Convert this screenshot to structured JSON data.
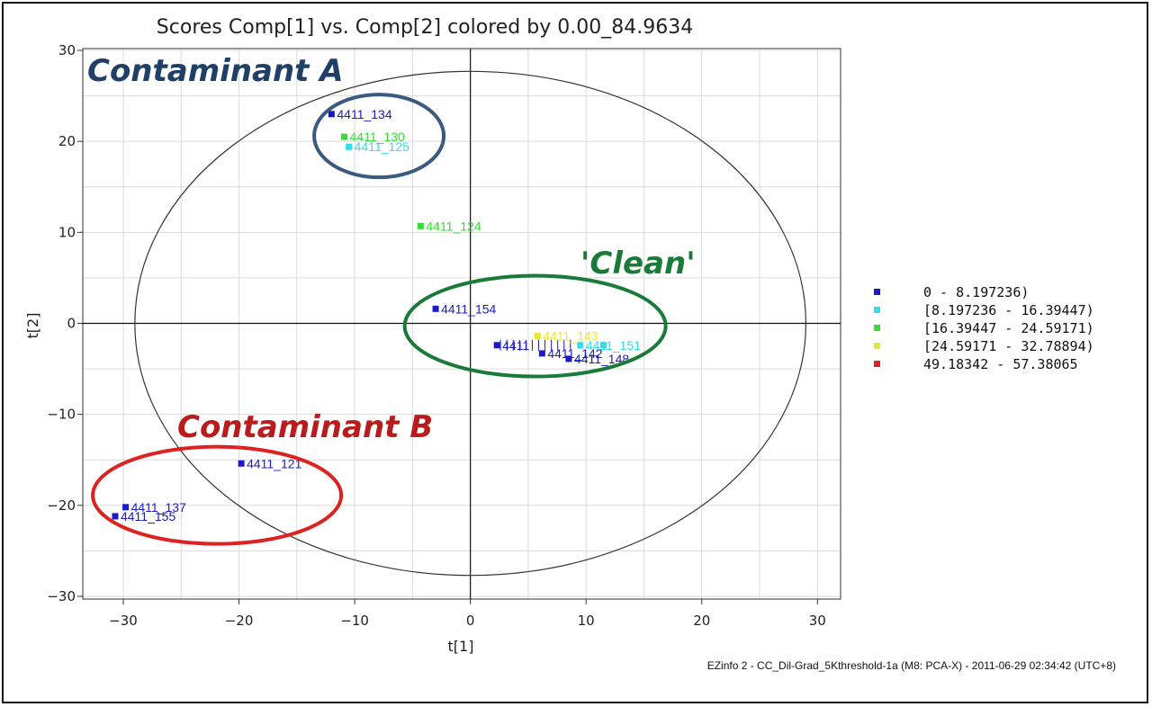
{
  "chart_data": {
    "type": "scatter",
    "title": "Scores Comp[1] vs. Comp[2] colored by 0.00_84.9634",
    "xlabel": "t[1]",
    "ylabel": "t[2]",
    "xlim": [
      -33.5,
      32
    ],
    "ylim": [
      -30.3,
      30.2
    ],
    "xticks": [
      -30,
      -20,
      -10,
      0,
      10,
      20,
      30
    ],
    "yticks": [
      -30,
      -20,
      -10,
      0,
      10,
      20,
      30
    ],
    "grid": true,
    "legend_position": "right",
    "legend": [
      {
        "label": "0 - 8.197236)",
        "color": "#1a1ac8"
      },
      {
        "label": "[8.197236 - 16.39447)",
        "color": "#33dde8"
      },
      {
        "label": "[16.39447 - 24.59171)",
        "color": "#33dd33"
      },
      {
        "label": "[24.59171 - 32.78894)",
        "color": "#e8e833"
      },
      {
        "label": "49.18342 - 57.38065",
        "color": "#dd2222"
      }
    ],
    "points": [
      {
        "x": -12.0,
        "y": 23.0,
        "label": "4411_134",
        "color": "#1a1ac8"
      },
      {
        "x": -10.9,
        "y": 20.5,
        "label": "4411_130",
        "color": "#33dd33"
      },
      {
        "x": -10.5,
        "y": 19.4,
        "label": "4411_125",
        "color": "#33dde8"
      },
      {
        "x": -4.3,
        "y": 10.7,
        "label": "4411_124",
        "color": "#33dd33"
      },
      {
        "x": -3.0,
        "y": 1.6,
        "label": "4411_154",
        "color": "#1a1ac8"
      },
      {
        "x": -19.8,
        "y": -15.4,
        "label": "4411_121",
        "color": "#1a1ac8"
      },
      {
        "x": -29.8,
        "y": -20.2,
        "label": "4411_137",
        "color": "#1a1ac8"
      },
      {
        "x": -30.7,
        "y": -21.2,
        "label": "4411_155",
        "color": "#1a1ac8"
      },
      {
        "x": 2.3,
        "y": -2.4,
        "label": "4411",
        "color": "#1a1ac8"
      },
      {
        "x": 5.8,
        "y": -1.4,
        "label": "4411_143",
        "color": "#e8e833"
      },
      {
        "x": 6.2,
        "y": -3.3,
        "label": "4411_142",
        "color": "#1a1ac8"
      },
      {
        "x": 8.5,
        "y": -3.9,
        "label": "4411_148",
        "color": "#1a1ac8"
      },
      {
        "x": 9.5,
        "y": -2.4,
        "label": "4411_151",
        "color": "#33dde8"
      },
      {
        "x": 11.5,
        "y": -2.4,
        "label": "",
        "color": "#33dde8"
      }
    ],
    "confidence_ellipse": {
      "cx": 0,
      "cy": 0,
      "rx": 29,
      "ry": 27.7
    }
  },
  "annotations": [
    {
      "text": "Contaminant A",
      "color": "#1f3f66"
    },
    {
      "text": "'Clean'",
      "color": "#1a7a3a"
    },
    {
      "text": "Contaminant B",
      "color": "#b81c1c"
    }
  ],
  "footer": "EZinfo 2 - CC_Dil-Grad_5Kthreshold-1a (M8: PCA-X) - 2011-06-29 02:34:42 (UTC+8)"
}
